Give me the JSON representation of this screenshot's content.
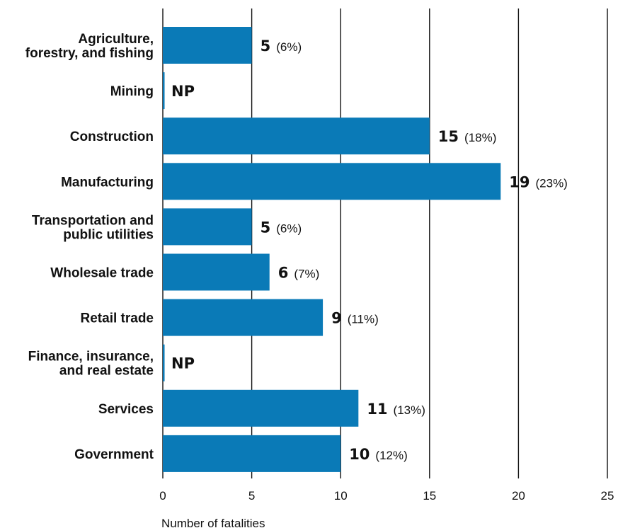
{
  "chart_data": {
    "type": "bar",
    "orientation": "horizontal",
    "categories": [
      "Agriculture, forestry, and fishing",
      "Mining",
      "Construction",
      "Manufacturing",
      "Transportation and public utilities",
      "Wholesale trade",
      "Retail trade",
      "Finance, insurance, and real estate",
      "Services",
      "Government"
    ],
    "category_label_lines": [
      [
        "Agriculture,",
        "forestry, and fishing"
      ],
      [
        "Mining"
      ],
      [
        "Construction"
      ],
      [
        "Manufacturing"
      ],
      [
        "Transportation and",
        "public utilities"
      ],
      [
        "Wholesale trade"
      ],
      [
        "Retail trade"
      ],
      [
        "Finance, insurance,",
        "and real estate"
      ],
      [
        "Services"
      ],
      [
        "Government"
      ]
    ],
    "values": [
      5,
      null,
      15,
      19,
      5,
      6,
      9,
      null,
      11,
      10
    ],
    "value_labels": [
      "5",
      "NP",
      "15",
      "19",
      "5",
      "6",
      "9",
      "NP",
      "11",
      "10"
    ],
    "percent_labels": [
      "(6%)",
      "",
      "(18%)",
      "(23%)",
      "(6%)",
      "(7%)",
      "(11%)",
      "",
      "(13%)",
      "(12%)"
    ],
    "xlabel": "Number of fatalities",
    "xlim": [
      0,
      25
    ],
    "xticks": [
      0,
      5,
      10,
      15,
      20,
      25
    ],
    "grid": "vertical",
    "bar_color": "#0a7ab7",
    "text_color": "#111111",
    "grid_color": "#111111"
  }
}
